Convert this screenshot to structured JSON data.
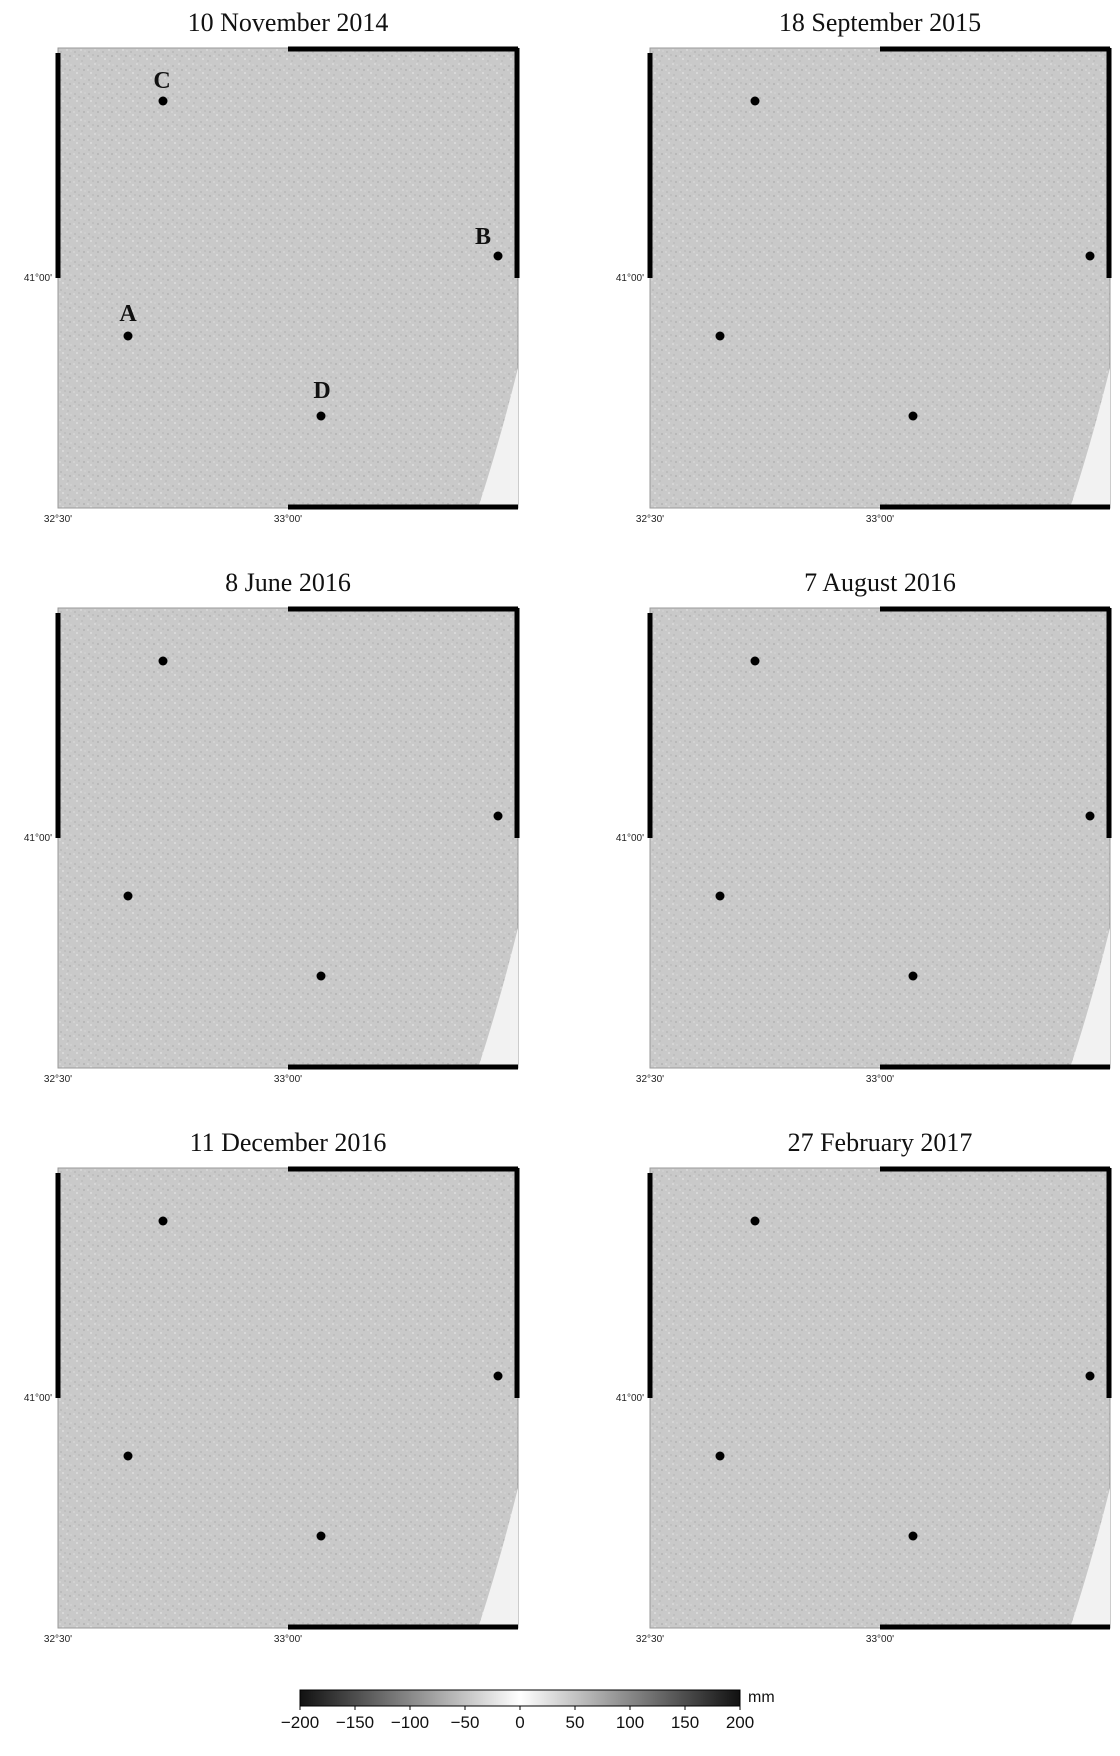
{
  "panels": [
    {
      "title": "10 November 2014",
      "show_labels": true
    },
    {
      "title": "18 September 2015",
      "show_labels": false
    },
    {
      "title": "8 June 2016",
      "show_labels": false
    },
    {
      "title": "7 August 2016",
      "show_labels": false
    },
    {
      "title": "11 December 2016",
      "show_labels": false
    },
    {
      "title": "27 February 2017",
      "show_labels": false
    }
  ],
  "axes": {
    "lat_tick": "41°00'",
    "lon_ticks": [
      "32°30'",
      "33°00'"
    ]
  },
  "sites": [
    {
      "name": "C"
    },
    {
      "name": "B"
    },
    {
      "name": "A"
    },
    {
      "name": "D"
    }
  ],
  "colorbar": {
    "unit": "mm",
    "ticks": [
      "−200",
      "−150",
      "−100",
      "−50",
      "0",
      "50",
      "100",
      "150",
      "200"
    ],
    "min": -200,
    "max": 200,
    "colors": [
      "#111111",
      "#ffffff",
      "#111111"
    ]
  }
}
